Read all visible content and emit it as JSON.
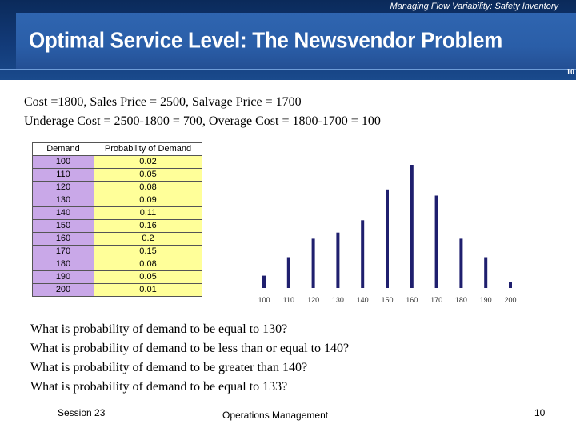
{
  "header": {
    "subtitle": "Managing Flow Variability: Safety Inventory",
    "title": "Optimal Service Level: The Newsvendor Problem",
    "page_number": "10"
  },
  "costs": {
    "line1": "Cost =1800, Sales Price = 2500, Salvage Price = 1700",
    "line2": "Underage Cost = 2500-1800 = 700, Overage Cost = 1800-1700 = 100"
  },
  "table": {
    "headers": [
      "Demand",
      "Probability of Demand"
    ],
    "rows": [
      [
        "100",
        "0.02"
      ],
      [
        "110",
        "0.05"
      ],
      [
        "120",
        "0.08"
      ],
      [
        "130",
        "0.09"
      ],
      [
        "140",
        "0.11"
      ],
      [
        "150",
        "0.16"
      ],
      [
        "160",
        "0.2"
      ],
      [
        "170",
        "0.15"
      ],
      [
        "180",
        "0.08"
      ],
      [
        "190",
        "0.05"
      ],
      [
        "200",
        "0.01"
      ]
    ]
  },
  "chart_data": {
    "type": "bar",
    "categories": [
      "100",
      "110",
      "120",
      "130",
      "140",
      "150",
      "160",
      "170",
      "180",
      "190",
      "200"
    ],
    "values": [
      0.02,
      0.05,
      0.08,
      0.09,
      0.11,
      0.16,
      0.2,
      0.15,
      0.08,
      0.05,
      0.01
    ],
    "title": "",
    "xlabel": "",
    "ylabel": "",
    "ylim": [
      0,
      0.2
    ],
    "grid": false,
    "bar_color": "#1f1f6e"
  },
  "questions": [
    "What is probability of demand to be equal to 130?",
    "What is probability of demand to be less than or equal to 140?",
    "What is probability of demand to be greater than  140?",
    "What is probability of demand to be equal to 133?"
  ],
  "footer": {
    "left": "Session 23",
    "center": "Operations Management",
    "right": "10"
  }
}
